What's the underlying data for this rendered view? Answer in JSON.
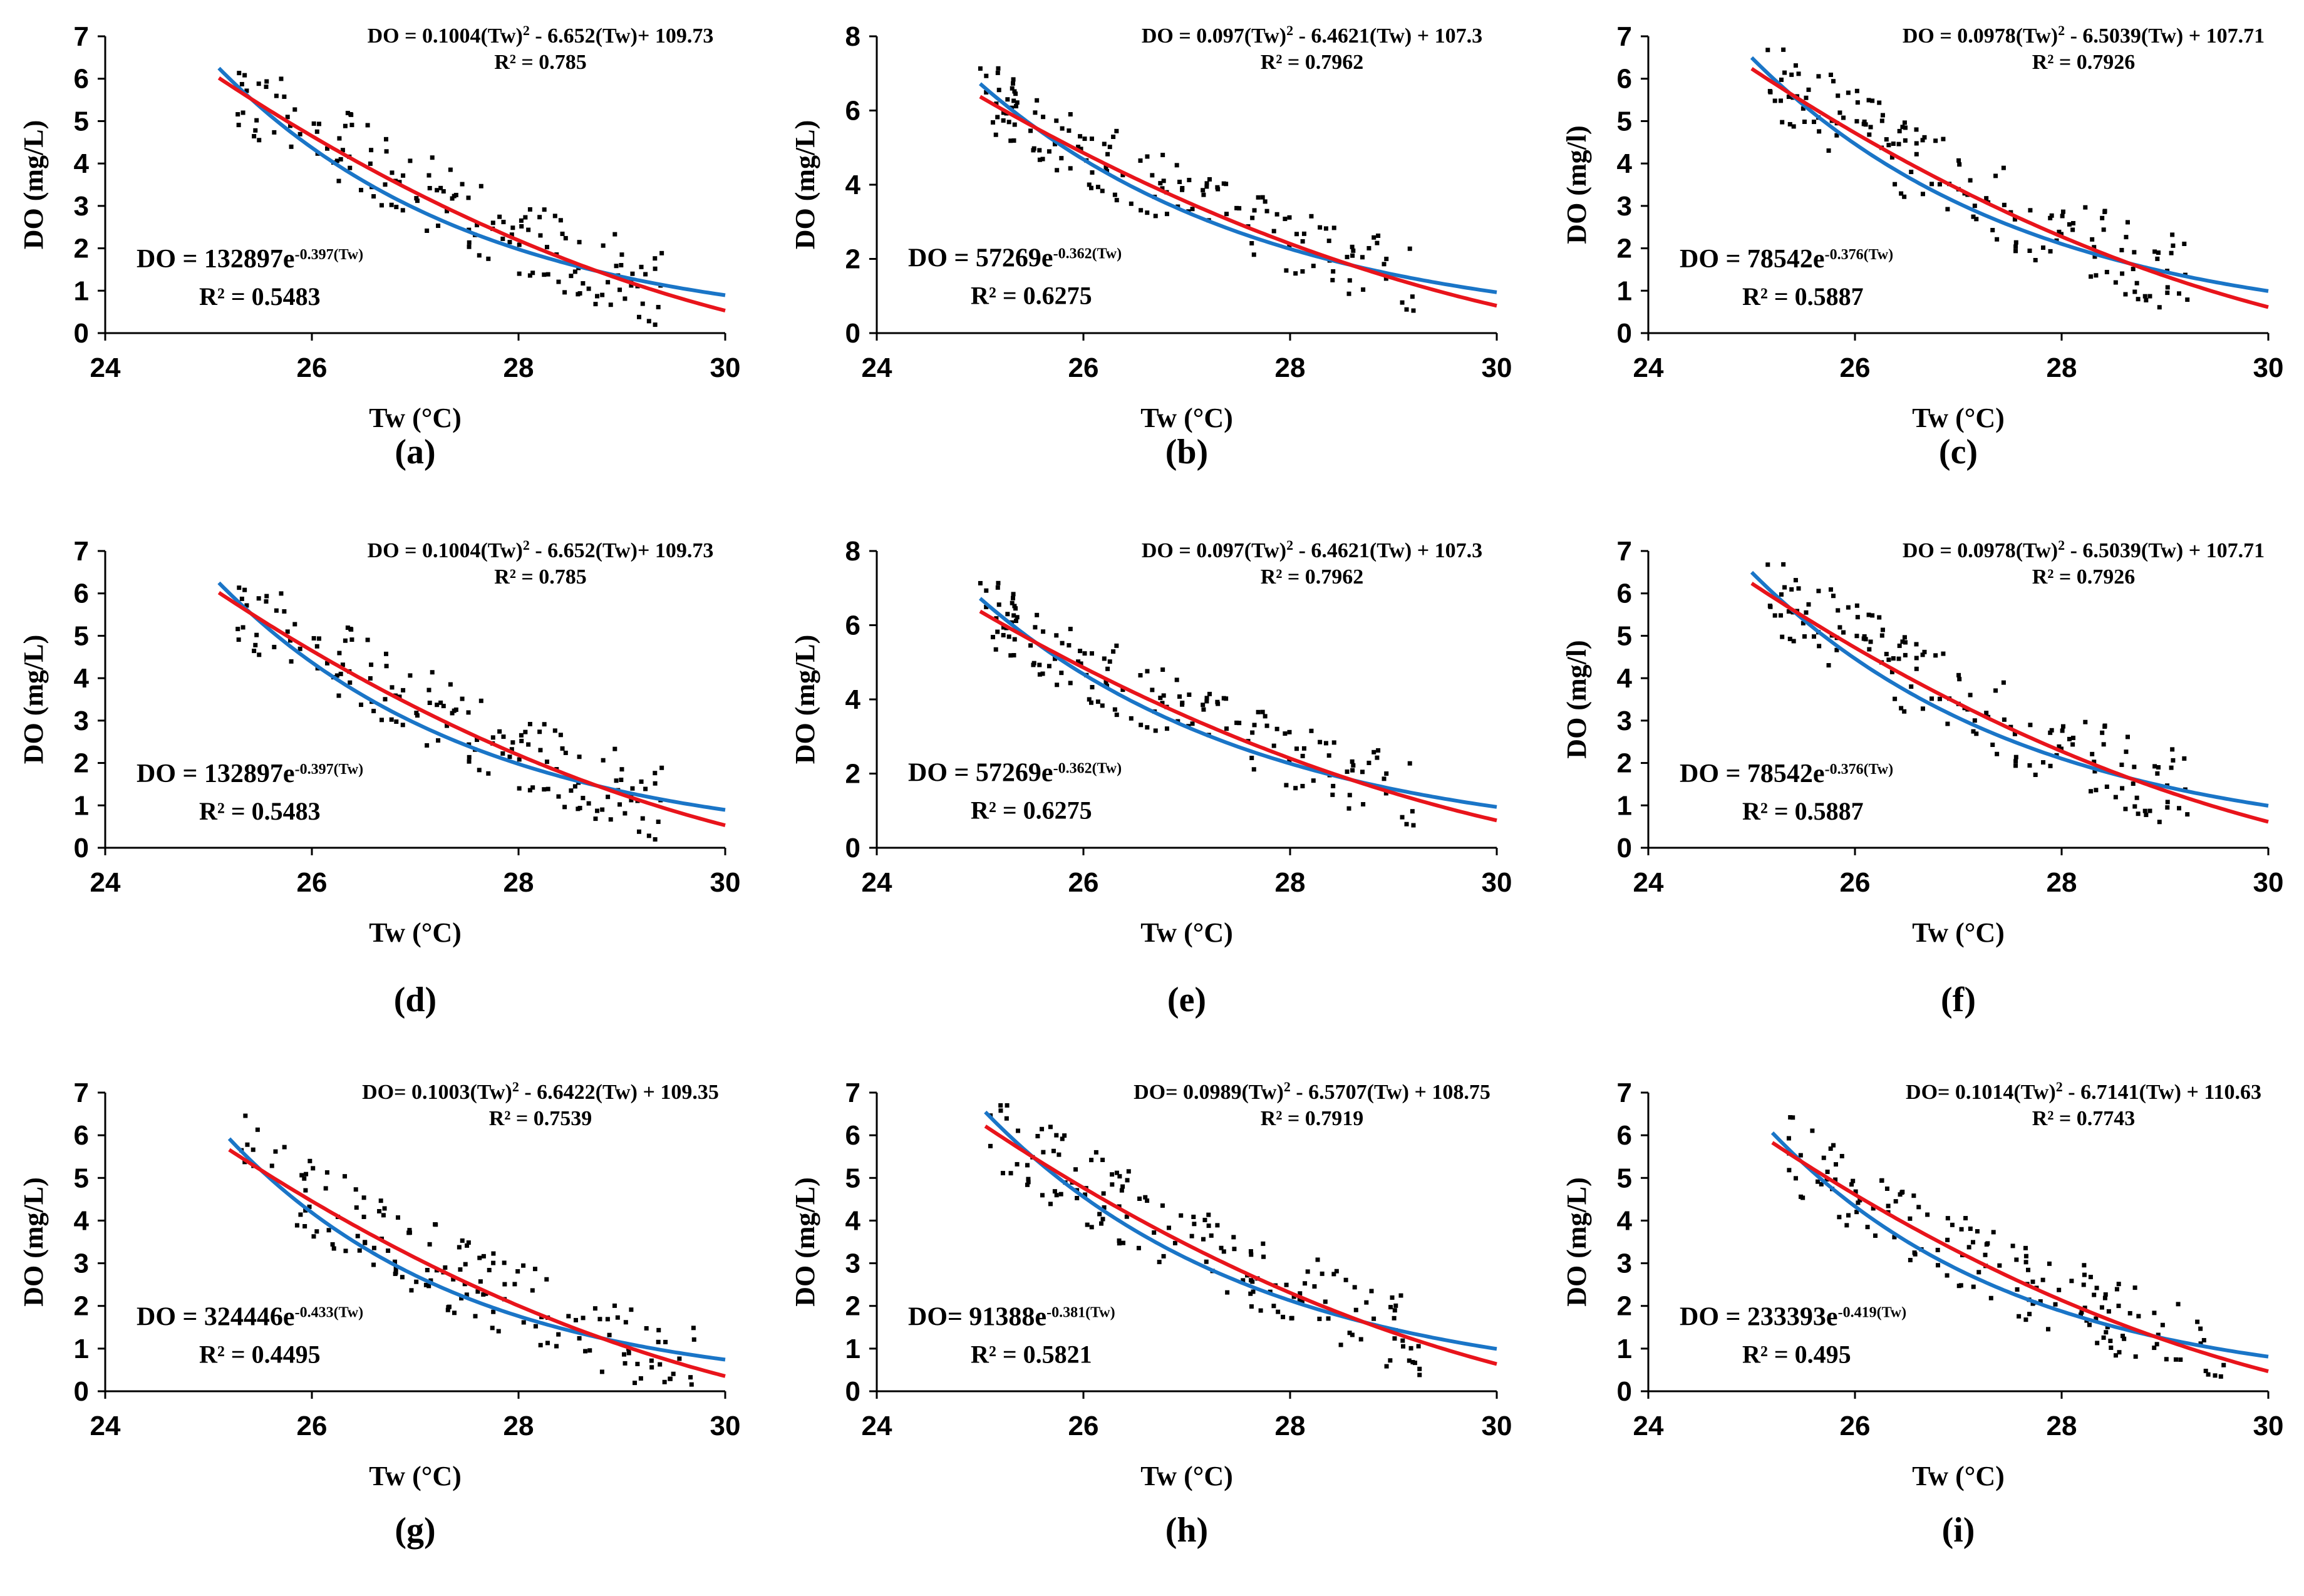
{
  "colors": {
    "quadratic": "#e8141b",
    "exponential": "#1a75c7",
    "points": "#000000",
    "axis": "#000000"
  },
  "chart_data": [
    {
      "type": "scatter",
      "panel": "(a)",
      "xlabel": "Tw (°C)",
      "ylabel": "DO (mg/L)",
      "xlim": [
        24,
        30
      ],
      "ylim": [
        0,
        7
      ],
      "xticks": [
        24,
        26,
        28,
        30
      ],
      "yticks": [
        0,
        1,
        2,
        3,
        4,
        5,
        6,
        7
      ],
      "quad": {
        "coef": [
          0.1004,
          -6.652,
          109.73
        ],
        "label": "DO = 0.1004(Tw)",
        "label_tail": " - 6.652(Tw)+ 109.73",
        "r2": "R² = 0.785",
        "x_start": 25.1
      },
      "expo": {
        "a": 132897,
        "b": -0.397,
        "label": "DO = 132897e",
        "exp_label": "-0.397(Tw)",
        "r2": "R² = 0.5483",
        "x_start": 25.1
      },
      "scatter_seed": 11,
      "scatter_n": 150,
      "scatter_range": [
        25.2,
        29.4
      ]
    },
    {
      "type": "scatter",
      "panel": "(b)",
      "xlabel": "Tw (°C)",
      "ylabel": "DO (mg/L)",
      "xlim": [
        24,
        30
      ],
      "ylim": [
        0,
        8
      ],
      "xticks": [
        24,
        26,
        28,
        30
      ],
      "yticks": [
        0,
        2,
        4,
        6,
        8
      ],
      "quad": {
        "coef": [
          0.097,
          -6.4621,
          107.3
        ],
        "label": "DO = 0.097(Tw)",
        "label_tail": " - 6.4621(Tw) + 107.3",
        "r2": "R² = 0.7962",
        "x_start": 25.0
      },
      "expo": {
        "a": 57269,
        "b": -0.362,
        "label": "DO = 57269e",
        "exp_label": "-0.362(Tw)",
        "r2": "R² = 0.6275",
        "x_start": 25.0
      },
      "scatter_seed": 23,
      "scatter_n": 150,
      "scatter_range": [
        25.0,
        29.2
      ]
    },
    {
      "type": "scatter",
      "panel": "(c)",
      "xlabel": "Tw (°C)",
      "ylabel": "DO (mg/l)",
      "xlim": [
        24,
        30
      ],
      "ylim": [
        0,
        7
      ],
      "xticks": [
        24,
        26,
        28,
        30
      ],
      "yticks": [
        0,
        1,
        2,
        3,
        4,
        5,
        6,
        7
      ],
      "quad": {
        "coef": [
          0.0978,
          -6.5039,
          107.71
        ],
        "label": "DO = 0.0978(Tw)",
        "label_tail": " - 6.5039(Tw) + 107.71",
        "r2": "R² = 0.7926",
        "x_start": 25.0
      },
      "expo": {
        "a": 78542,
        "b": -0.376,
        "label": "DO = 78542e",
        "exp_label": "-0.376(Tw)",
        "r2": "R² = 0.5887",
        "x_start": 25.0
      },
      "scatter_seed": 37,
      "scatter_n": 150,
      "scatter_range": [
        25.1,
        29.3
      ]
    },
    {
      "type": "scatter",
      "panel": "(d)",
      "xlabel": "Tw (°C)",
      "ylabel": "DO (mg/L)",
      "xlim": [
        24,
        30
      ],
      "ylim": [
        0,
        7
      ],
      "xticks": [
        24,
        26,
        28,
        30
      ],
      "yticks": [
        0,
        1,
        2,
        3,
        4,
        5,
        6,
        7
      ],
      "quad": {
        "coef": [
          0.1004,
          -6.652,
          109.73
        ],
        "label": "DO = 0.1004(Tw)",
        "label_tail": " - 6.652(Tw)+ 109.73",
        "r2": "R² = 0.785",
        "x_start": 25.1
      },
      "expo": {
        "a": 132897,
        "b": -0.397,
        "label": "DO = 132897e",
        "exp_label": "-0.397(Tw)",
        "r2": "R² = 0.5483",
        "x_start": 25.1
      },
      "scatter_seed": 11,
      "scatter_n": 150,
      "scatter_range": [
        25.2,
        29.4
      ]
    },
    {
      "type": "scatter",
      "panel": "(e)",
      "xlabel": "Tw (°C)",
      "ylabel": "DO (mg/L)",
      "xlim": [
        24,
        30
      ],
      "ylim": [
        0,
        8
      ],
      "xticks": [
        24,
        26,
        28,
        30
      ],
      "yticks": [
        0,
        2,
        4,
        6,
        8
      ],
      "quad": {
        "coef": [
          0.097,
          -6.4621,
          107.3
        ],
        "label": "DO = 0.097(Tw)",
        "label_tail": " - 6.4621(Tw) + 107.3",
        "r2": "R² = 0.7962",
        "x_start": 25.0
      },
      "expo": {
        "a": 57269,
        "b": -0.362,
        "label": "DO = 57269e",
        "exp_label": "-0.362(Tw)",
        "r2": "R² = 0.6275",
        "x_start": 25.0
      },
      "scatter_seed": 23,
      "scatter_n": 150,
      "scatter_range": [
        25.0,
        29.2
      ]
    },
    {
      "type": "scatter",
      "panel": "(f)",
      "xlabel": "Tw (°C)",
      "ylabel": "DO (mg/l)",
      "xlim": [
        24,
        30
      ],
      "ylim": [
        0,
        7
      ],
      "xticks": [
        24,
        26,
        28,
        30
      ],
      "yticks": [
        0,
        1,
        2,
        3,
        4,
        5,
        6,
        7
      ],
      "quad": {
        "coef": [
          0.0978,
          -6.5039,
          107.71
        ],
        "label": "DO = 0.0978(Tw)",
        "label_tail": " - 6.5039(Tw) + 107.71",
        "r2": "R² = 0.7926",
        "x_start": 25.0
      },
      "expo": {
        "a": 78542,
        "b": -0.376,
        "label": "DO = 78542e",
        "exp_label": "-0.376(Tw)",
        "r2": "R² = 0.5887",
        "x_start": 25.0
      },
      "scatter_seed": 37,
      "scatter_n": 150,
      "scatter_range": [
        25.1,
        29.3
      ]
    },
    {
      "type": "scatter",
      "panel": "(g)",
      "xlabel": "Tw (°C)",
      "ylabel": "DO (mg/L)",
      "xlim": [
        24,
        30
      ],
      "ylim": [
        0,
        7
      ],
      "xticks": [
        24,
        26,
        28,
        30
      ],
      "yticks": [
        0,
        1,
        2,
        3,
        4,
        5,
        6,
        7
      ],
      "quad": {
        "coef": [
          0.1003,
          -6.6422,
          109.35
        ],
        "label": "DO= 0.1003(Tw)",
        "label_tail": " - 6.6422(Tw) + 109.35",
        "r2": "R² = 0.7539",
        "x_start": 25.2
      },
      "expo": {
        "a": 324446,
        "b": -0.433,
        "label": "DO = 324446e",
        "exp_label": "-0.433(Tw)",
        "r2": "R² = 0.4495",
        "x_start": 25.2
      },
      "scatter_seed": 51,
      "scatter_n": 150,
      "scatter_range": [
        25.3,
        29.7
      ]
    },
    {
      "type": "scatter",
      "panel": "(h)",
      "xlabel": "Tw (°C)",
      "ylabel": "DO (mg/L)",
      "xlim": [
        24,
        30
      ],
      "ylim": [
        0,
        7
      ],
      "xticks": [
        24,
        26,
        28,
        30
      ],
      "yticks": [
        0,
        1,
        2,
        3,
        4,
        5,
        6,
        7
      ],
      "quad": {
        "coef": [
          0.0989,
          -6.5707,
          108.75
        ],
        "label": "DO= 0.0989(Tw)",
        "label_tail": " - 6.5707(Tw) + 108.75",
        "r2": "R² = 0.7919",
        "x_start": 25.05
      },
      "expo": {
        "a": 91388,
        "b": -0.381,
        "label": "DO= 91388e",
        "exp_label": "-0.381(Tw)",
        "r2": "R² = 0.5821",
        "x_start": 25.05
      },
      "scatter_seed": 67,
      "scatter_n": 150,
      "scatter_range": [
        25.1,
        29.3
      ]
    },
    {
      "type": "scatter",
      "panel": "(i)",
      "xlabel": "Tw (°C)",
      "ylabel": "DO (mg/L)",
      "xlim": [
        24,
        30
      ],
      "ylim": [
        0,
        7
      ],
      "xticks": [
        24,
        26,
        28,
        30
      ],
      "yticks": [
        0,
        1,
        2,
        3,
        4,
        5,
        6,
        7
      ],
      "quad": {
        "coef": [
          0.1014,
          -6.7141,
          110.63
        ],
        "label": "DO= 0.1014(Tw)",
        "label_tail": " - 6.7141(Tw) + 110.63",
        "r2": "R² = 0.7743",
        "x_start": 25.2
      },
      "expo": {
        "a": 233393,
        "b": -0.419,
        "label": "DO = 233393e",
        "exp_label": "-0.419(Tw)",
        "r2": "R² = 0.495",
        "x_start": 25.2
      },
      "scatter_seed": 83,
      "scatter_n": 150,
      "scatter_range": [
        25.3,
        29.6
      ]
    }
  ]
}
